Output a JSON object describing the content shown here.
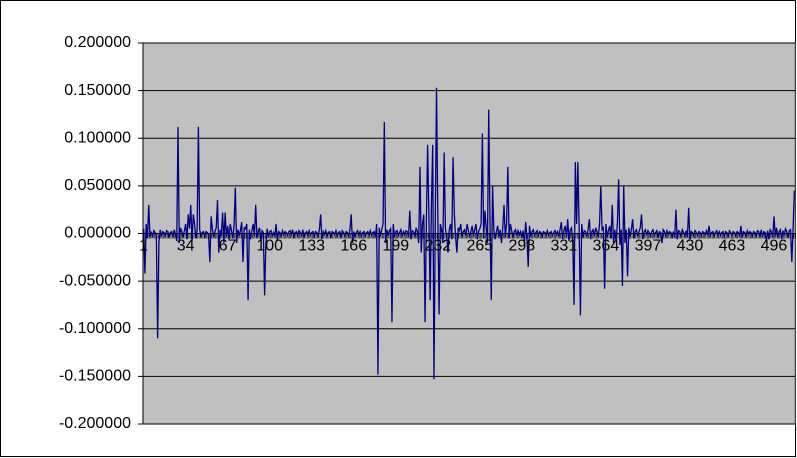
{
  "chart_data": {
    "type": "line",
    "color": "#000080",
    "grid": true,
    "ylim": [
      -0.2,
      0.2
    ],
    "yticks": [
      {
        "value": -0.2,
        "label": "-0.200000"
      },
      {
        "value": -0.15,
        "label": "-0.150000"
      },
      {
        "value": -0.1,
        "label": "-0.100000"
      },
      {
        "value": -0.05,
        "label": "-0.050000"
      },
      {
        "value": 0,
        "label": "0.000000"
      },
      {
        "value": 0.05,
        "label": "0.050000"
      },
      {
        "value": 0.1,
        "label": "0.100000"
      },
      {
        "value": 0.15,
        "label": "0.150000"
      },
      {
        "value": 0.2,
        "label": "0.200000"
      }
    ],
    "categories": [
      "1",
      null,
      null,
      null,
      null,
      null,
      null,
      null,
      null,
      null,
      null,
      null,
      null,
      null,
      null,
      null,
      null,
      null,
      null,
      null,
      null,
      null,
      null,
      null,
      null,
      null,
      null,
      null,
      null,
      null,
      null,
      null,
      null,
      "34",
      null,
      null,
      null,
      null,
      null,
      null,
      null,
      null,
      null,
      null,
      null,
      null,
      null,
      null,
      null,
      null,
      null,
      null,
      null,
      null,
      null,
      null,
      null,
      null,
      null,
      null,
      null,
      null,
      null,
      null,
      null,
      null,
      "67",
      null,
      null,
      null,
      null,
      null,
      null,
      null,
      null,
      null,
      null,
      null,
      null,
      null,
      null,
      null,
      null,
      null,
      null,
      null,
      null,
      null,
      null,
      null,
      null,
      null,
      null,
      null,
      null,
      null,
      null,
      null,
      null,
      "100",
      null,
      null,
      null,
      null,
      null,
      null,
      null,
      null,
      null,
      null,
      null,
      null,
      null,
      null,
      null,
      null,
      null,
      null,
      null,
      null,
      null,
      null,
      null,
      null,
      null,
      null,
      null,
      null,
      null,
      null,
      null,
      null,
      "133",
      null,
      null,
      null,
      null,
      null,
      null,
      null,
      null,
      null,
      null,
      null,
      null,
      null,
      null,
      null,
      null,
      null,
      null,
      null,
      null,
      null,
      null,
      null,
      null,
      null,
      null,
      null,
      null,
      null,
      null,
      null,
      null,
      "166",
      null,
      null,
      null,
      null,
      null,
      null,
      null,
      null,
      null,
      null,
      null,
      null,
      null,
      null,
      null,
      null,
      null,
      null,
      null,
      null,
      null,
      null,
      null,
      null,
      null,
      null,
      null,
      null,
      null,
      null,
      null,
      null,
      "199",
      null,
      null,
      null,
      null,
      null,
      null,
      null,
      null,
      null,
      null,
      null,
      null,
      null,
      null,
      null,
      null,
      null,
      null,
      null,
      null,
      null,
      null,
      null,
      null,
      null,
      null,
      null,
      null,
      null,
      null,
      null,
      null,
      "232",
      null,
      null,
      null,
      null,
      null,
      null,
      null,
      null,
      null,
      null,
      null,
      null,
      null,
      null,
      null,
      null,
      null,
      null,
      null,
      null,
      null,
      null,
      null,
      null,
      null,
      null,
      null,
      null,
      null,
      null,
      null,
      null,
      "265",
      null,
      null,
      null,
      null,
      null,
      null,
      null,
      null,
      null,
      null,
      null,
      null,
      null,
      null,
      null,
      null,
      null,
      null,
      null,
      null,
      null,
      null,
      null,
      null,
      null,
      null,
      null,
      null,
      null,
      null,
      null,
      null,
      "298",
      null,
      null,
      null,
      null,
      null,
      null,
      null,
      null,
      null,
      null,
      null,
      null,
      null,
      null,
      null,
      null,
      null,
      null,
      null,
      null,
      null,
      null,
      null,
      null,
      null,
      null,
      null,
      null,
      null,
      null,
      null,
      null,
      "331",
      null,
      null,
      null,
      null,
      null,
      null,
      null,
      null,
      null,
      null,
      null,
      null,
      null,
      null,
      null,
      null,
      null,
      null,
      null,
      null,
      null,
      null,
      null,
      null,
      null,
      null,
      null,
      null,
      null,
      null,
      null,
      null,
      "364",
      null,
      null,
      null,
      null,
      null,
      null,
      null,
      null,
      null,
      null,
      null,
      null,
      null,
      null,
      null,
      null,
      null,
      null,
      null,
      null,
      null,
      null,
      null,
      null,
      null,
      null,
      null,
      null,
      null,
      null,
      null,
      null,
      "397",
      null,
      null,
      null,
      null,
      null,
      null,
      null,
      null,
      null,
      null,
      null,
      null,
      null,
      null,
      null,
      null,
      null,
      null,
      null,
      null,
      null,
      null,
      null,
      null,
      null,
      null,
      null,
      null,
      null,
      null,
      null,
      null,
      "430",
      null,
      null,
      null,
      null,
      null,
      null,
      null,
      null,
      null,
      null,
      null,
      null,
      null,
      null,
      null,
      null,
      null,
      null,
      null,
      null,
      null,
      null,
      null,
      null,
      null,
      null,
      null,
      null,
      null,
      null,
      null,
      null,
      "463",
      null,
      null,
      null,
      null,
      null,
      null,
      null,
      null,
      null,
      null,
      null,
      null,
      null,
      null,
      null,
      null,
      null,
      null,
      null,
      null,
      null,
      null,
      null,
      null,
      null,
      null,
      null,
      null,
      null,
      null,
      null,
      null,
      "496",
      null,
      null,
      null,
      null,
      null,
      null,
      null,
      null,
      null,
      null,
      null,
      null,
      null,
      null,
      null,
      null
    ],
    "values": [
      0.005,
      -0.042,
      0.01,
      -0.005,
      0.03,
      -0.003,
      0.002,
      -0.004,
      0.003,
      0.001,
      -0.002,
      -0.11,
      -0.01,
      0.004,
      -0.003,
      0.002,
      0.001,
      -0.002,
      0.003,
      0.002,
      -0.004,
      0.001,
      0.002,
      -0.003,
      0.004,
      -0.001,
      -0.008,
      0.112,
      -0.01,
      0.006,
      0.002,
      -0.004,
      0.003,
      0.01,
      -0.006,
      0.02,
      0.005,
      0.03,
      -0.008,
      0.02,
      0.01,
      -0.005,
      0.003,
      0.112,
      0.004,
      -0.002,
      0.001,
      0.002,
      -0.003,
      0.002,
      0.001,
      -0.002,
      -0.03,
      0.018,
      0.005,
      -0.004,
      0.002,
      0.006,
      0.035,
      -0.02,
      0.004,
      -0.003,
      0.022,
      -0.01,
      0.022,
      -0.004,
      0.008,
      -0.006,
      0.01,
      0.003,
      -0.005,
      0.008,
      0.048,
      -0.01,
      0.004,
      -0.002,
      0.003,
      0.012,
      -0.03,
      0.006,
      0.005,
      0.01,
      -0.07,
      0.004,
      -0.006,
      0.003,
      0.01,
      -0.003,
      0.03,
      -0.004,
      0.002,
      0.006,
      -0.008,
      0.003,
      0.001,
      -0.065,
      -0.01,
      0.005,
      -0.004,
      0.002,
      0.003,
      -0.002,
      0.001,
      -0.003,
      0.01,
      -0.008,
      0.002,
      0.001,
      -0.002,
      0.003,
      -0.001,
      0.002,
      0.001,
      -0.002,
      0.002,
      0.003,
      -0.001,
      0.004,
      -0.003,
      0.001,
      0.002,
      -0.002,
      0.003,
      0.001,
      -0.002,
      0.004,
      -0.004,
      0.001,
      0.002,
      -0.001,
      0.003,
      -0.002,
      0.001,
      0.002,
      -0.003,
      0.002,
      0.001,
      -0.002,
      0.004,
      0.02,
      -0.006,
      0.002,
      -0.001,
      0.003,
      -0.002,
      0.001,
      0.002,
      -0.003,
      0.002,
      0.001,
      -0.001,
      0.003,
      -0.002,
      0.001,
      0.002,
      -0.004,
      0.003,
      0.001,
      -0.002,
      0.002,
      0.001,
      -0.003,
      0.004,
      0.02,
      -0.01,
      0.002,
      -0.002,
      0.001,
      0.003,
      -0.001,
      0.002,
      -0.003,
      0.001,
      0.002,
      -0.002,
      0.001,
      0.002,
      -0.001,
      0.003,
      -0.002,
      0.001,
      0.002,
      -0.004,
      0.01,
      -0.148,
      0.006,
      -0.003,
      0.004,
      0.01,
      0.117,
      -0.01,
      0.004,
      -0.002,
      0.003,
      0.005,
      -0.093,
      0.01,
      -0.004,
      0.002,
      0.003,
      -0.002,
      0.001,
      0.004,
      -0.003,
      0.002,
      -0.001,
      0.003,
      0.002,
      -0.004,
      0.024,
      -0.006,
      0.003,
      0.002,
      -0.003,
      0.006,
      0.002,
      -0.01,
      0.07,
      -0.02,
      0.01,
      0.02,
      -0.093,
      0.01,
      0.093,
      0.02,
      -0.07,
      0.03,
      0.093,
      -0.153,
      0.01,
      0.153,
      0.02,
      -0.085,
      0.01,
      0.004,
      -0.01,
      0.085,
      0.005,
      -0.003,
      -0.02,
      0.004,
      0.01,
      -0.006,
      0.08,
      0.02,
      -0.004,
      -0.02,
      0.006,
      0.003,
      0.01,
      -0.003,
      0.002,
      0.004,
      -0.002,
      0.01,
      0.003,
      -0.004,
      0.002,
      0.008,
      -0.003,
      0.004,
      0.01,
      -0.006,
      0.002,
      0.005,
      0.01,
      0.105,
      -0.005,
      0.024,
      0.006,
      -0.01,
      0.13,
      0.01,
      -0.07,
      0.05,
      0.004,
      -0.006,
      0.002,
      0.008,
      -0.003,
      0.004,
      -0.01,
      0.006,
      0.03,
      -0.004,
      0.01,
      0.07,
      -0.005,
      0.01,
      0.003,
      -0.004,
      0.002,
      0.004,
      -0.002,
      0.003,
      -0.001,
      0.002,
      -0.004,
      0.003,
      -0.01,
      0.012,
      -0.005,
      -0.035,
      0.008,
      -0.003,
      0.002,
      0.004,
      -0.002,
      0.001,
      0.003,
      -0.002,
      0.002,
      0.001,
      -0.003,
      0.002,
      0.001,
      -0.001,
      0.003,
      -0.002,
      0.001,
      0.002,
      -0.002,
      0.001,
      0.003,
      -0.001,
      0.002,
      -0.003,
      0.004,
      0.012,
      -0.006,
      0.003,
      0.008,
      -0.004,
      0.015,
      -0.008,
      0.004,
      0.006,
      -0.01,
      -0.075,
      0.075,
      0.01,
      0.075,
      0.004,
      -0.086,
      0.01,
      -0.004,
      0.003,
      0.002,
      -0.003,
      0.004,
      0.015,
      -0.006,
      0.002,
      0.004,
      -0.003,
      0.006,
      0.002,
      -0.004,
      0.01,
      0.05,
      0.004,
      0.006,
      -0.058,
      0.01,
      -0.004,
      0.003,
      0.008,
      -0.005,
      0.03,
      -0.01,
      0.004,
      -0.008,
      0.01,
      0.057,
      -0.012,
      0.004,
      -0.055,
      0.05,
      -0.01,
      0.004,
      -0.045,
      0.006,
      -0.003,
      0.004,
      0.015,
      -0.005,
      0.002,
      0.004,
      -0.003,
      0.002,
      0.006,
      0.02,
      -0.006,
      0.002,
      0.004,
      -0.002,
      0.003,
      0.001,
      -0.003,
      0.002,
      0.004,
      -0.002,
      0.001,
      0.003,
      -0.004,
      0.002,
      0.001,
      -0.01,
      0.004,
      0.002,
      -0.002,
      0.003,
      -0.001,
      0.002,
      0.001,
      -0.003,
      0.002,
      -0.004,
      0.025,
      -0.006,
      0.003,
      0.002,
      -0.003,
      0.004,
      0.001,
      -0.002,
      0.003,
      -0.004,
      0.027,
      -0.006,
      0.002,
      0.001,
      -0.002,
      0.003,
      0.001,
      -0.002,
      0.002,
      0.001,
      -0.003,
      0.002,
      0.001,
      -0.001,
      0.003,
      -0.002,
      0.008,
      -0.002,
      0.001,
      0.002,
      -0.002,
      0.001,
      0.003,
      -0.001,
      0.002,
      -0.002,
      0.001,
      0.002,
      -0.003,
      0.002,
      0.001,
      -0.002,
      0.003,
      0.001,
      -0.001,
      0.002,
      0.001,
      -0.002,
      0.002,
      0.001,
      -0.003,
      0.008,
      -0.004,
      0.002,
      0.001,
      -0.002,
      0.003,
      -0.001,
      0.002,
      0.001,
      -0.003,
      0.002,
      0.001,
      -0.002,
      0.003,
      0.002,
      -0.003,
      0.004,
      -0.004,
      0.002,
      0.001,
      -0.008,
      0.003,
      -0.006,
      0.004,
      0.002,
      -0.004,
      0.018,
      -0.003,
      0.006,
      -0.004,
      0.002,
      0.004,
      -0.006,
      0.003,
      -0.002,
      0.005,
      0.002,
      -0.004,
      0.003,
      0.004,
      -0.03,
      0.006,
      0.045
    ]
  }
}
